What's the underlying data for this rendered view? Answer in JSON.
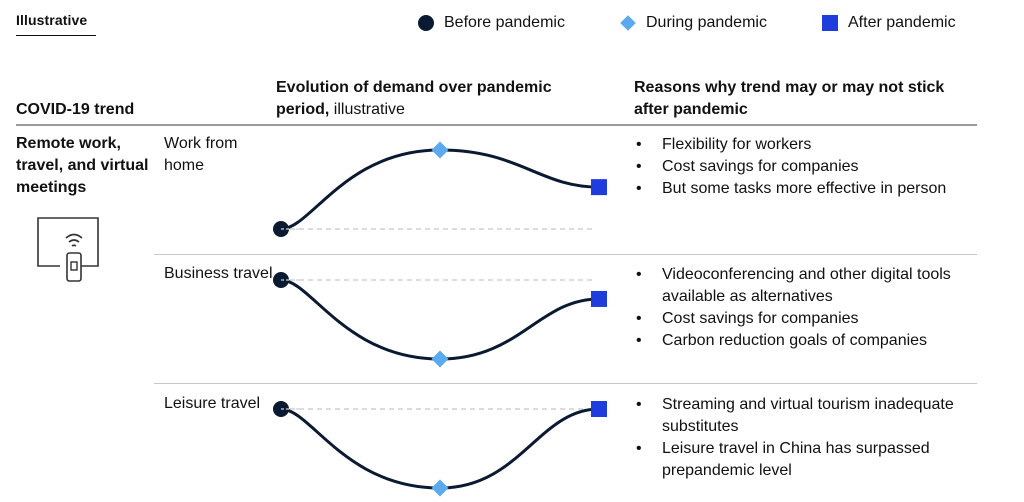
{
  "tag": "Illustrative",
  "legend": [
    {
      "label": "Before pandemic",
      "marker": "circle",
      "color": "#0b1a33"
    },
    {
      "label": "During pandemic",
      "marker": "diamond",
      "color": "#5aaaf0"
    },
    {
      "label": "After pandemic",
      "marker": "square",
      "color": "#1f3ddc"
    }
  ],
  "headers": {
    "trend": "COVID-19 trend",
    "evolution_bold": "Evolution of demand over pandemic period,",
    "evolution_light": "illustrative",
    "reasons": "Reasons why trend may or may not stick after  pandemic"
  },
  "trend_title": "Remote work, travel, and virtual meetings",
  "icon": "remote-work-device-icon",
  "colors": {
    "line": "#0b1a33",
    "before": "#0b1a33",
    "during": "#5aaaf0",
    "after": "#1f3ddc",
    "baseline": "#c7c7c7"
  },
  "rows": [
    {
      "label": "Work from home",
      "curve": {
        "before": 0,
        "during": 1.0,
        "after": 0.53
      },
      "reasons": [
        "Flexibility for workers",
        "Cost savings for companies",
        "But some tasks more effective in person"
      ]
    },
    {
      "label": "Business travel",
      "curve": {
        "before": 0,
        "during": -1.0,
        "after": -0.24
      },
      "reasons": [
        "Videoconferencing and other digital tools available as alternatives",
        "Cost savings for companies",
        "Carbon reduction goals of companies"
      ]
    },
    {
      "label": "Leisure travel",
      "curve": {
        "before": 0,
        "during": -1.0,
        "after": 0
      },
      "reasons": [
        "Streaming and virtual tourism inadequate substitutes",
        "Leisure travel in China has surpassed prepandemic level"
      ]
    }
  ]
}
